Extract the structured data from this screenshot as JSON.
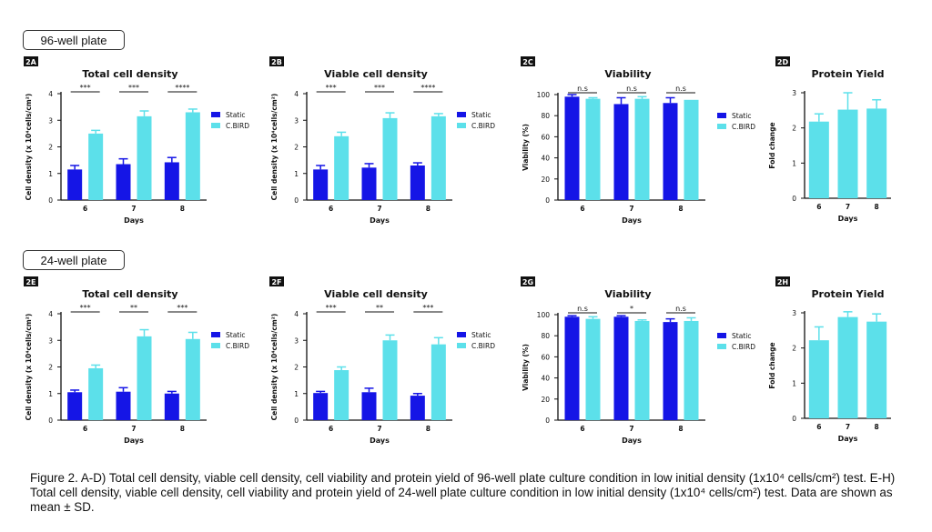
{
  "sections": [
    {
      "label": "96-well plate"
    },
    {
      "label": "24-well plate"
    }
  ],
  "legend": {
    "static": "Static",
    "cbird": "C.BIRD"
  },
  "colors": {
    "static": "#1515e6",
    "cbird": "#5ce0ea",
    "text": "#111111"
  },
  "caption": "Figure 2. A-D) Total cell density, viable cell density, cell viability and protein yield of 96-well plate culture condition in low initial density (1x10⁴ cells/cm²) test. E-H) Total cell density, viable cell density, cell viability and protein yield of 24-well plate culture condition in low initial density (1x10⁴ cells/cm²) test. Data are shown as mean ± SD.",
  "chart_data": [
    {
      "id": "2A",
      "type": "bar",
      "title": "Total cell density",
      "xlabel": "Days",
      "ylabel": "Cell density (x 10⁴cells/cm²)",
      "categories": [
        "6",
        "7",
        "8"
      ],
      "ylim": [
        0,
        4
      ],
      "yticks": [
        "0",
        "1",
        "2",
        "3",
        "4"
      ],
      "series": [
        {
          "name": "Static",
          "values": [
            1.15,
            1.35,
            1.42
          ],
          "errors": [
            0.15,
            0.2,
            0.18
          ]
        },
        {
          "name": "C.BIRD",
          "values": [
            2.5,
            3.15,
            3.3
          ],
          "errors": [
            0.12,
            0.2,
            0.12
          ]
        }
      ],
      "significance": [
        "***",
        "***",
        "****"
      ]
    },
    {
      "id": "2B",
      "type": "bar",
      "title": "Viable cell density",
      "xlabel": "Days",
      "ylabel": "Cell density (x 10⁴cells/cm²)",
      "categories": [
        "6",
        "7",
        "8"
      ],
      "ylim": [
        0,
        4
      ],
      "yticks": [
        "0",
        "1",
        "2",
        "3",
        "4"
      ],
      "series": [
        {
          "name": "Static",
          "values": [
            1.15,
            1.22,
            1.3
          ],
          "errors": [
            0.15,
            0.15,
            0.1
          ]
        },
        {
          "name": "C.BIRD",
          "values": [
            2.4,
            3.08,
            3.15
          ],
          "errors": [
            0.15,
            0.2,
            0.1
          ]
        }
      ],
      "significance": [
        "***",
        "***",
        "****"
      ]
    },
    {
      "id": "2C",
      "type": "bar",
      "title": "Viability",
      "xlabel": "Days",
      "ylabel": "Viability (%)",
      "categories": [
        "6",
        "7",
        "8"
      ],
      "ylim": [
        0,
        100
      ],
      "yticks": [
        "0",
        "20",
        "40",
        "60",
        "80",
        "100"
      ],
      "series": [
        {
          "name": "Static",
          "values": [
            98,
            91,
            92
          ],
          "errors": [
            2,
            6,
            5
          ]
        },
        {
          "name": "C.BIRD",
          "values": [
            96,
            96,
            95
          ],
          "errors": [
            1,
            2,
            0
          ]
        }
      ],
      "significance": [
        "n.s",
        "n.s",
        "n.s"
      ]
    },
    {
      "id": "2D",
      "type": "bar",
      "title": "Protein Yield",
      "xlabel": "Days",
      "ylabel": "Fold change",
      "categories": [
        "6",
        "7",
        "8"
      ],
      "ylim": [
        0,
        3
      ],
      "yticks": [
        "0",
        "1",
        "2",
        "3"
      ],
      "series": [
        {
          "name": "C.BIRD",
          "values": [
            2.18,
            2.52,
            2.55
          ],
          "errors": [
            0.22,
            0.48,
            0.25
          ]
        }
      ]
    },
    {
      "id": "2E",
      "type": "bar",
      "title": "Total cell density",
      "xlabel": "Days",
      "ylabel": "Cell density (x 10⁴cells/cm²)",
      "categories": [
        "6",
        "7",
        "8"
      ],
      "ylim": [
        0,
        4
      ],
      "yticks": [
        "0",
        "1",
        "2",
        "3",
        "4"
      ],
      "series": [
        {
          "name": "Static",
          "values": [
            1.05,
            1.07,
            1.0
          ],
          "errors": [
            0.08,
            0.15,
            0.08
          ]
        },
        {
          "name": "C.BIRD",
          "values": [
            1.95,
            3.15,
            3.05
          ],
          "errors": [
            0.12,
            0.25,
            0.25
          ]
        }
      ],
      "significance": [
        "***",
        "**",
        "***"
      ]
    },
    {
      "id": "2F",
      "type": "bar",
      "title": "Viable cell density",
      "xlabel": "Days",
      "ylabel": "Cell density (x 10⁴cells/cm²)",
      "categories": [
        "6",
        "7",
        "8"
      ],
      "ylim": [
        0,
        4
      ],
      "yticks": [
        "0",
        "1",
        "2",
        "3",
        "4"
      ],
      "series": [
        {
          "name": "Static",
          "values": [
            1.02,
            1.05,
            0.92
          ],
          "errors": [
            0.06,
            0.15,
            0.08
          ]
        },
        {
          "name": "C.BIRD",
          "values": [
            1.88,
            3.0,
            2.85
          ],
          "errors": [
            0.12,
            0.2,
            0.25
          ]
        }
      ],
      "significance": [
        "***",
        "**",
        "***"
      ]
    },
    {
      "id": "2G",
      "type": "bar",
      "title": "Viability",
      "xlabel": "Days",
      "ylabel": "Viability (%)",
      "categories": [
        "6",
        "7",
        "8"
      ],
      "ylim": [
        0,
        100
      ],
      "yticks": [
        "0",
        "20",
        "40",
        "60",
        "80",
        "100"
      ],
      "series": [
        {
          "name": "Static",
          "values": [
            98,
            98,
            93
          ],
          "errors": [
            1,
            1,
            3
          ]
        },
        {
          "name": "C.BIRD",
          "values": [
            96,
            94,
            94
          ],
          "errors": [
            2,
            1,
            3
          ]
        }
      ],
      "significance": [
        "n.s",
        "*",
        "n.s"
      ]
    },
    {
      "id": "2H",
      "type": "bar",
      "title": "Protein Yield",
      "xlabel": "Days",
      "ylabel": "Fold change",
      "categories": [
        "6",
        "7",
        "8"
      ],
      "ylim": [
        0,
        3
      ],
      "yticks": [
        "0",
        "1",
        "2",
        "3"
      ],
      "series": [
        {
          "name": "C.BIRD",
          "values": [
            2.22,
            2.88,
            2.75
          ],
          "errors": [
            0.38,
            0.15,
            0.22
          ]
        }
      ]
    }
  ]
}
